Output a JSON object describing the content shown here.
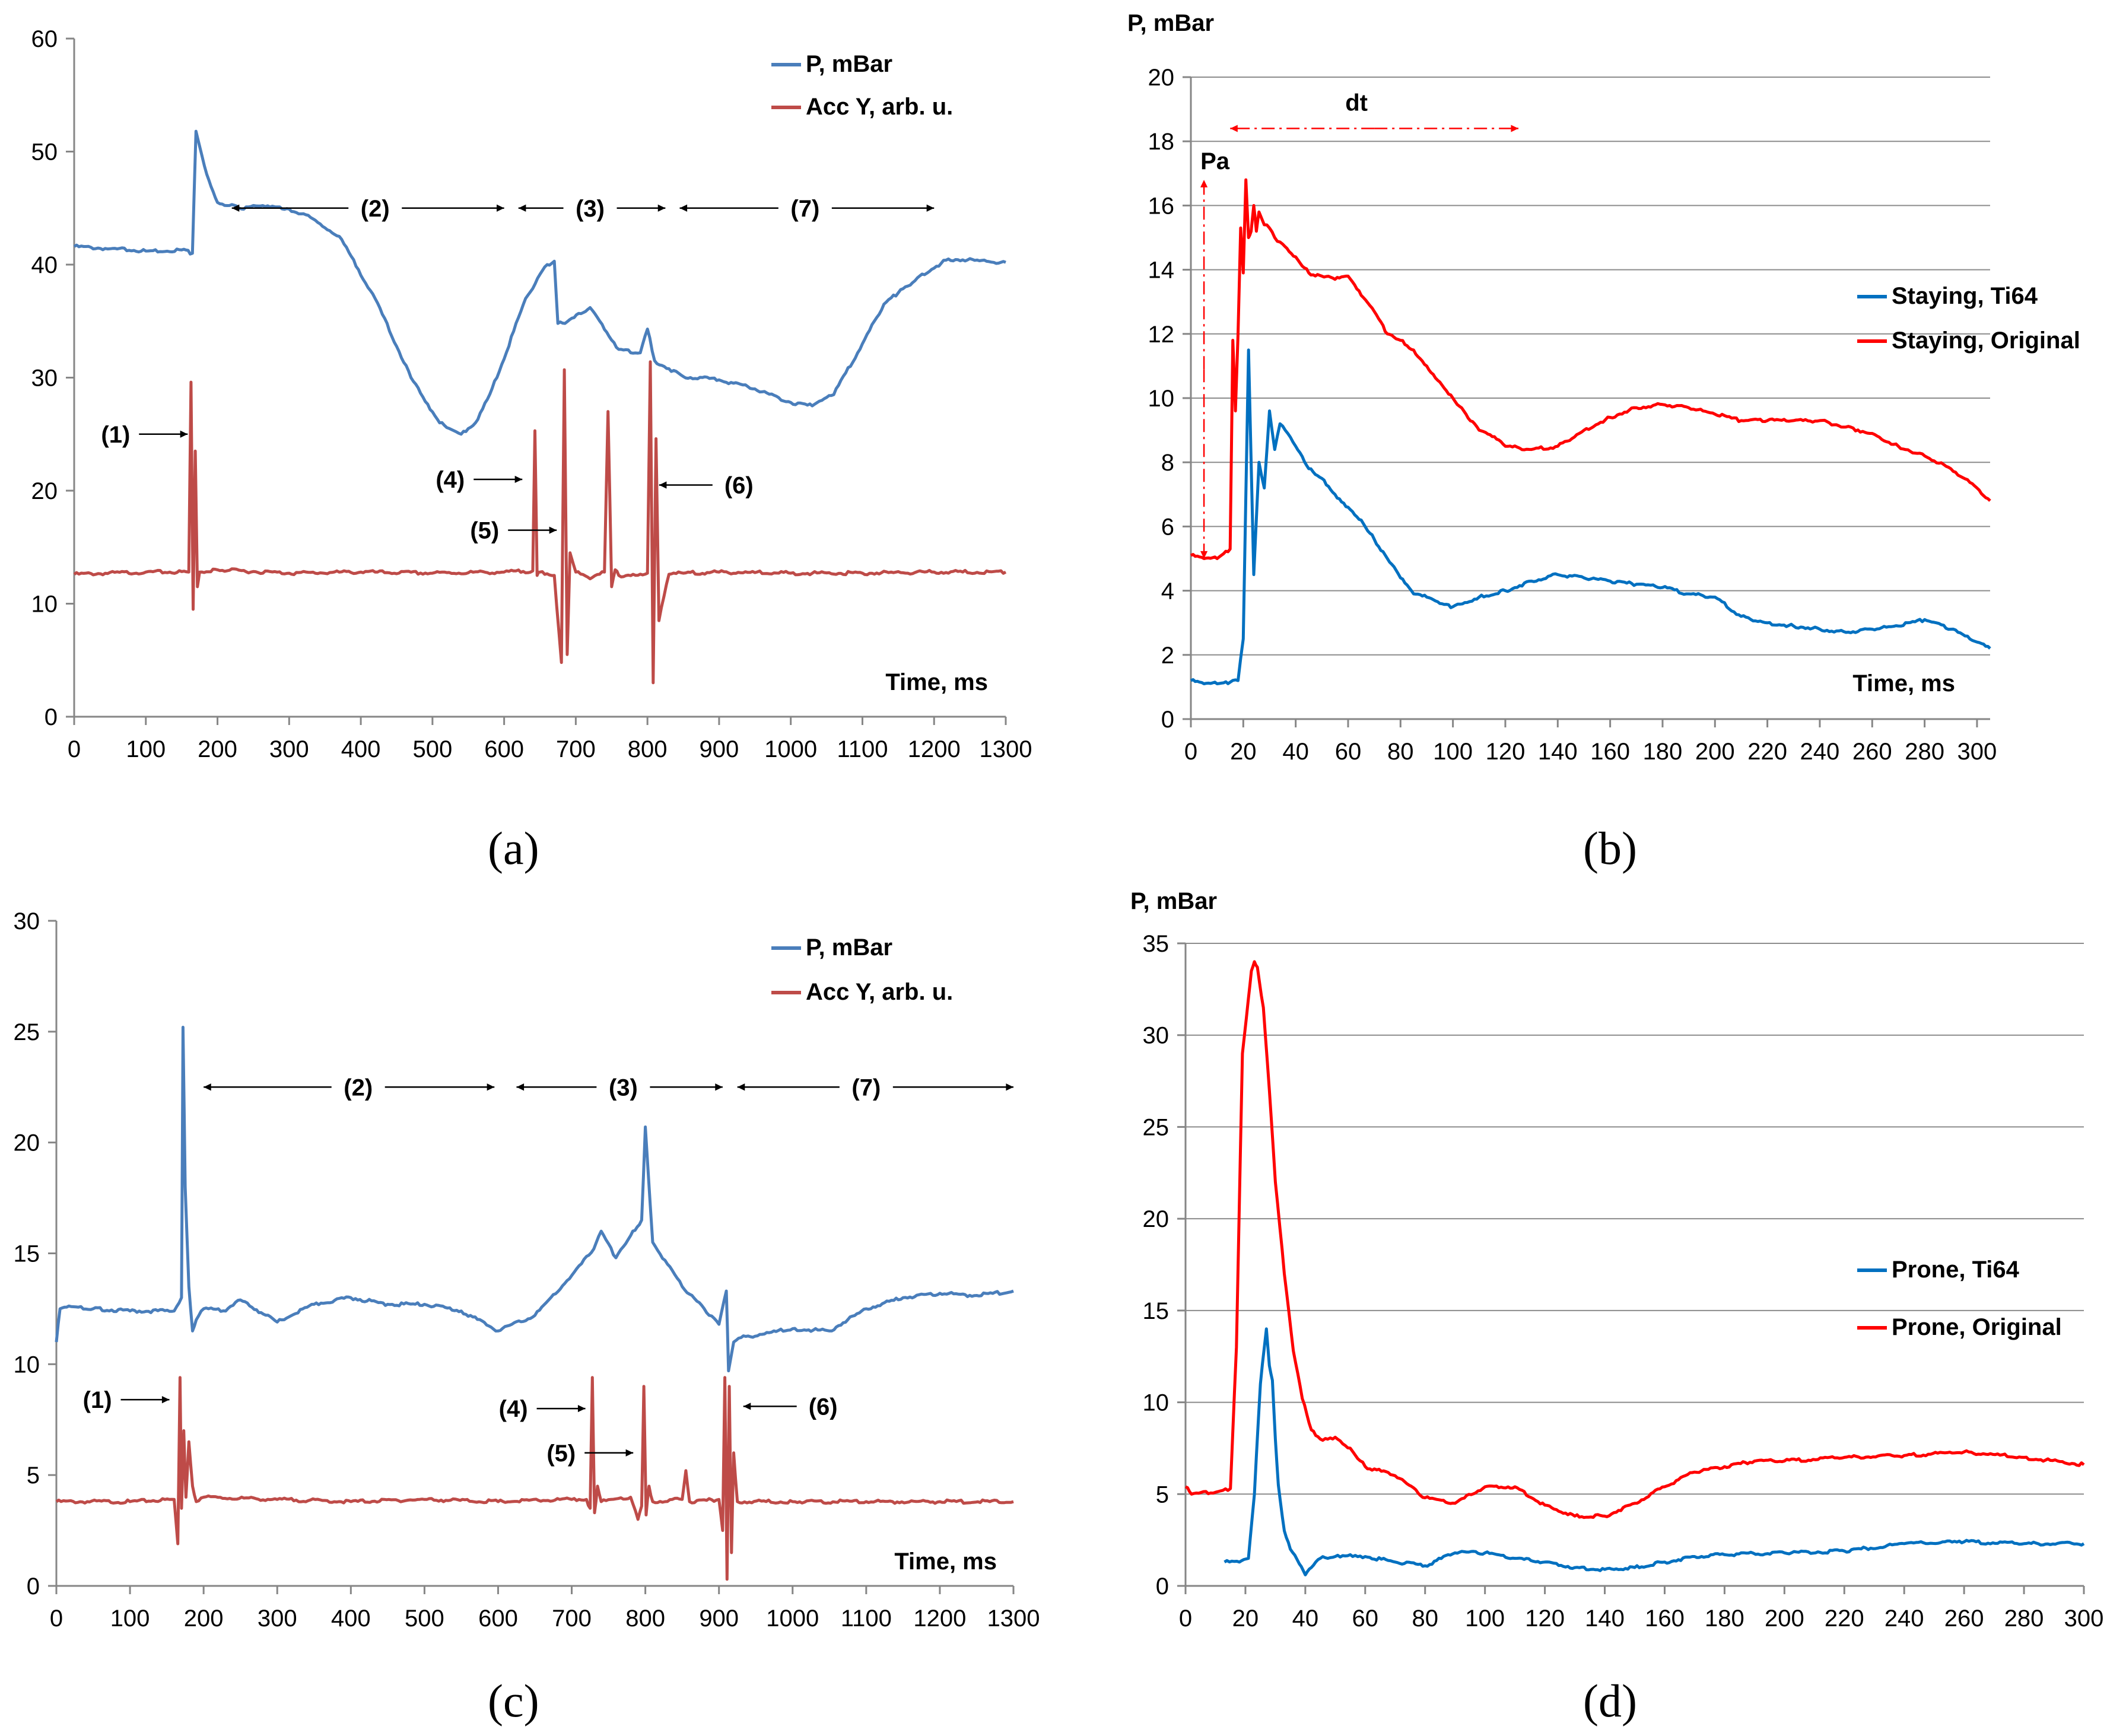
{
  "figure": {
    "panels": [
      {
        "label": "(a)"
      },
      {
        "label": "(b)"
      },
      {
        "label": "(c)"
      },
      {
        "label": "(d)"
      }
    ]
  },
  "chart_data": [
    {
      "type": "line",
      "panel": "(a)",
      "title": "",
      "xlabel": "Time, ms",
      "ylabel": "",
      "xlim": [
        0,
        1300
      ],
      "ylim": [
        0,
        60
      ],
      "x_ticks": [
        0,
        100,
        200,
        300,
        400,
        500,
        600,
        700,
        800,
        900,
        1000,
        1100,
        1200,
        1300
      ],
      "y_ticks": [
        0,
        10,
        20,
        30,
        40,
        50,
        60
      ],
      "grid": false,
      "legend": "top-right",
      "series": [
        {
          "name": "P, mBar",
          "color": "#4a7ebb",
          "x": [
            0,
            50,
            100,
            150,
            165,
            170,
            175,
            185,
            200,
            230,
            270,
            320,
            370,
            420,
            470,
            510,
            540,
            560,
            590,
            630,
            660,
            670,
            675,
            685,
            720,
            760,
            790,
            800,
            810,
            850,
            900,
            950,
            1000,
            1030,
            1060,
            1100,
            1130,
            1150,
            1180,
            1220,
            1300
          ],
          "y": [
            41.6,
            41.4,
            41.2,
            41.3,
            41.0,
            51.8,
            50.5,
            48,
            45.5,
            45,
            45.2,
            44.5,
            42.5,
            37,
            30,
            26,
            25,
            26,
            30,
            37,
            40,
            40.3,
            34.8,
            34.8,
            36.2,
            32.5,
            32.2,
            34.3,
            31.5,
            30.1,
            29.8,
            29,
            27.8,
            27.5,
            28.5,
            33,
            36.5,
            37.5,
            39,
            40.5,
            40.2
          ]
        },
        {
          "name": "Acc Y, arb. u.",
          "color": "#be4b48",
          "x": [
            0,
            100,
            160,
            163,
            166,
            169,
            172,
            175,
            200,
            300,
            400,
            500,
            600,
            640,
            643,
            646,
            650,
            670,
            680,
            684,
            688,
            692,
            700,
            720,
            740,
            745,
            750,
            755,
            760,
            780,
            800,
            804,
            808,
            812,
            816,
            830,
            850,
            900,
            1000,
            1100,
            1200,
            1300
          ],
          "y": [
            12.6,
            12.8,
            12.8,
            29.6,
            9.5,
            23.5,
            11.5,
            12.8,
            13.0,
            12.7,
            12.8,
            12.7,
            12.8,
            12.9,
            25.3,
            12.5,
            12.8,
            12.5,
            4.8,
            30.7,
            5.5,
            14.5,
            12.8,
            12.2,
            12.8,
            27.0,
            11.5,
            13.0,
            12.5,
            12.6,
            12.7,
            31.4,
            3.0,
            24.6,
            8.5,
            12.6,
            12.7,
            12.8,
            12.7,
            12.7,
            12.8,
            12.8
          ]
        }
      ],
      "annotations": [
        {
          "text": "(1)",
          "x": 165,
          "y": 25,
          "kind": "label-left"
        },
        {
          "text": "(2)",
          "x": 420,
          "y": 45,
          "kind": "span",
          "x_start": 220,
          "x_end": 600
        },
        {
          "text": "(3)",
          "x": 720,
          "y": 45,
          "kind": "span",
          "x_start": 620,
          "x_end": 825
        },
        {
          "text": "(7)",
          "x": 1020,
          "y": 45,
          "kind": "span",
          "x_start": 845,
          "x_end": 1200
        },
        {
          "text": "(4)",
          "x": 632,
          "y": 21,
          "kind": "label-left"
        },
        {
          "text": "(5)",
          "x": 680,
          "y": 16.5,
          "kind": "label-left"
        },
        {
          "text": "(6)",
          "x": 808,
          "y": 20.5,
          "kind": "label-right"
        }
      ]
    },
    {
      "type": "line",
      "panel": "(b)",
      "title": "",
      "xlabel": "Time, ms",
      "ylabel": "P, mBar",
      "xlim": [
        0,
        305
      ],
      "ylim": [
        0,
        20
      ],
      "x_ticks": [
        0,
        20,
        40,
        60,
        80,
        100,
        120,
        140,
        160,
        180,
        200,
        220,
        240,
        260,
        280,
        300
      ],
      "y_ticks": [
        0,
        2,
        4,
        6,
        8,
        10,
        12,
        14,
        16,
        18,
        20
      ],
      "grid": true,
      "legend": "right",
      "series": [
        {
          "name": "Staying, Ti64",
          "color": "#0070c0",
          "x": [
            0,
            5,
            10,
            15,
            18,
            20,
            22,
            24,
            26,
            28,
            30,
            32,
            34,
            36,
            40,
            45,
            50,
            55,
            60,
            65,
            70,
            75,
            80,
            85,
            90,
            95,
            100,
            110,
            120,
            130,
            140,
            150,
            160,
            170,
            180,
            190,
            200,
            210,
            220,
            230,
            240,
            250,
            260,
            270,
            280,
            290,
            300,
            305
          ],
          "y": [
            1.2,
            1.1,
            1.1,
            1.15,
            1.2,
            2.5,
            11.5,
            4.5,
            8,
            7.2,
            9.6,
            8.4,
            9.2,
            9,
            8.5,
            7.8,
            7.5,
            7,
            6.6,
            6.2,
            5.6,
            5.0,
            4.4,
            3.9,
            3.8,
            3.6,
            3.5,
            3.8,
            4.0,
            4.3,
            4.5,
            4.4,
            4.3,
            4.2,
            4.1,
            3.9,
            3.8,
            3.2,
            3.0,
            2.9,
            2.8,
            2.7,
            2.8,
            2.9,
            3.1,
            2.8,
            2.4,
            2.2
          ]
        },
        {
          "name": "Staying, Original",
          "color": "#ff0000",
          "x": [
            0,
            5,
            10,
            15,
            16,
            17,
            18,
            19,
            20,
            21,
            22,
            23,
            24,
            25,
            26,
            28,
            30,
            32,
            35,
            40,
            45,
            50,
            55,
            60,
            65,
            70,
            75,
            80,
            85,
            90,
            95,
            100,
            105,
            110,
            115,
            120,
            130,
            140,
            150,
            160,
            170,
            180,
            190,
            200,
            210,
            220,
            230,
            240,
            250,
            260,
            270,
            280,
            290,
            300,
            305
          ],
          "y": [
            5.1,
            5.0,
            5.0,
            5.3,
            11.8,
            9.6,
            12.0,
            15.3,
            13.9,
            16.8,
            15.0,
            15.2,
            16.0,
            15.2,
            15.8,
            15.4,
            15.3,
            15.0,
            14.8,
            14.4,
            13.9,
            13.8,
            13.7,
            13.8,
            13.2,
            12.7,
            12.0,
            11.8,
            11.5,
            11.0,
            10.5,
            10.0,
            9.5,
            9.0,
            8.8,
            8.5,
            8.4,
            8.5,
            9.0,
            9.4,
            9.7,
            9.8,
            9.7,
            9.5,
            9.3,
            9.3,
            9.3,
            9.3,
            9.1,
            8.9,
            8.5,
            8.2,
            7.8,
            7.2,
            6.8
          ]
        }
      ],
      "annotations": [
        {
          "text": "dt",
          "kind": "double-arrow-horizontal",
          "x_start": 15,
          "x_end": 125,
          "y": 18.4
        },
        {
          "text": "Pa",
          "kind": "double-arrow-vertical",
          "x": 5,
          "y_start": 5,
          "y_end": 16.8
        }
      ]
    },
    {
      "type": "line",
      "panel": "(c)",
      "title": "",
      "xlabel": "Time, ms",
      "ylabel": "",
      "xlim": [
        0,
        1300
      ],
      "ylim": [
        0,
        30
      ],
      "x_ticks": [
        0,
        100,
        200,
        300,
        400,
        500,
        600,
        700,
        800,
        900,
        1000,
        1100,
        1200,
        1300
      ],
      "y_ticks": [
        0,
        5,
        10,
        15,
        20,
        25,
        30
      ],
      "grid": false,
      "legend": "top-right",
      "series": [
        {
          "name": "P, mBar",
          "color": "#4a7ebb",
          "x": [
            0,
            5,
            20,
            50,
            100,
            160,
            170,
            172,
            175,
            180,
            185,
            190,
            200,
            230,
            250,
            300,
            350,
            400,
            450,
            500,
            550,
            600,
            650,
            700,
            730,
            740,
            760,
            780,
            795,
            800,
            810,
            850,
            880,
            900,
            910,
            913,
            920,
            930,
            1000,
            1050,
            1100,
            1150,
            1200,
            1250,
            1300
          ],
          "y": [
            11.0,
            12.5,
            12.6,
            12.5,
            12.4,
            12.4,
            13.0,
            25.2,
            18.0,
            13.5,
            11.5,
            12.0,
            12.5,
            12.4,
            12.9,
            11.9,
            12.7,
            13.0,
            12.7,
            12.7,
            12.4,
            11.5,
            12.2,
            14.0,
            15.2,
            16.0,
            14.8,
            15.8,
            16.5,
            20.7,
            15.5,
            13.5,
            12.5,
            11.8,
            13.3,
            9.7,
            11.0,
            11.2,
            11.6,
            11.5,
            12.5,
            13.0,
            13.2,
            13.1,
            13.3
          ]
        },
        {
          "name": "Acc Y, arb. u.",
          "color": "#be4b48",
          "x": [
            0,
            100,
            160,
            165,
            168,
            170,
            173,
            176,
            180,
            185,
            190,
            200,
            300,
            400,
            500,
            600,
            700,
            720,
            725,
            728,
            731,
            735,
            740,
            780,
            790,
            795,
            798,
            801,
            805,
            810,
            850,
            855,
            860,
            900,
            905,
            908,
            911,
            914,
            917,
            920,
            925,
            1000,
            1100,
            1200,
            1300
          ],
          "y": [
            3.8,
            3.8,
            3.9,
            1.9,
            9.4,
            3.5,
            7.0,
            4.0,
            6.5,
            4.5,
            3.8,
            4.0,
            3.9,
            3.8,
            3.9,
            3.8,
            3.9,
            3.9,
            3.5,
            9.4,
            3.3,
            4.5,
            3.8,
            4.0,
            3.0,
            3.6,
            9.0,
            3.2,
            4.5,
            3.8,
            3.9,
            5.2,
            3.8,
            3.9,
            2.5,
            9.4,
            0.3,
            9.0,
            1.5,
            6.0,
            3.8,
            3.8,
            3.8,
            3.8,
            3.8
          ]
        }
      ],
      "annotations": [
        {
          "text": "(1)",
          "x": 160,
          "y": 8.4,
          "kind": "label-left"
        },
        {
          "text": "(2)",
          "x": 410,
          "y": 22.5,
          "kind": "span",
          "x_start": 200,
          "x_end": 595
        },
        {
          "text": "(3)",
          "x": 770,
          "y": 22.5,
          "kind": "span",
          "x_start": 625,
          "x_end": 905
        },
        {
          "text": "(7)",
          "x": 1100,
          "y": 22.5,
          "kind": "span",
          "x_start": 925,
          "x_end": 1300
        },
        {
          "text": "(4)",
          "x": 725,
          "y": 8.0,
          "kind": "label-left"
        },
        {
          "text": "(5)",
          "x": 790,
          "y": 6.0,
          "kind": "label-left"
        },
        {
          "text": "(6)",
          "x": 925,
          "y": 8.1,
          "kind": "label-right"
        }
      ]
    },
    {
      "type": "line",
      "panel": "(d)",
      "title": "",
      "xlabel": "",
      "ylabel": "P, mBar",
      "xlim": [
        0,
        300
      ],
      "ylim": [
        0,
        35
      ],
      "x_ticks": [
        0,
        20,
        40,
        60,
        80,
        100,
        120,
        140,
        160,
        180,
        200,
        220,
        240,
        260,
        280,
        300
      ],
      "y_ticks": [
        0,
        5,
        10,
        15,
        20,
        25,
        30,
        35
      ],
      "grid": true,
      "legend": "right",
      "series": [
        {
          "name": "Prone, Ti64",
          "color": "#0070c0",
          "x": [
            13,
            18,
            21,
            23,
            25,
            27,
            28,
            29,
            30,
            31,
            33,
            35,
            38,
            40,
            42,
            45,
            50,
            55,
            60,
            70,
            80,
            90,
            100,
            110,
            120,
            130,
            140,
            150,
            160,
            170,
            180,
            200,
            220,
            240,
            260,
            280,
            300
          ],
          "y": [
            1.3,
            1.3,
            1.5,
            5,
            11,
            14,
            12,
            11.2,
            8,
            5.5,
            3,
            2,
            1.2,
            0.6,
            1.0,
            1.5,
            1.6,
            1.7,
            1.6,
            1.3,
            1.1,
            1.8,
            1.8,
            1.5,
            1.3,
            1.0,
            0.9,
            1.0,
            1.3,
            1.6,
            1.7,
            1.8,
            1.9,
            2.3,
            2.4,
            2.3,
            2.3
          ]
        },
        {
          "name": "Prone, Original",
          "color": "#ff0000",
          "x": [
            0,
            2,
            10,
            15,
            17,
            19,
            21,
            22,
            23,
            24,
            26,
            28,
            30,
            33,
            36,
            39,
            42,
            45,
            50,
            55,
            60,
            70,
            80,
            90,
            100,
            110,
            120,
            130,
            140,
            150,
            160,
            170,
            180,
            190,
            200,
            220,
            240,
            260,
            280,
            300
          ],
          "y": [
            5.4,
            5.0,
            5.1,
            5.3,
            13,
            29,
            32,
            33.5,
            34,
            33.7,
            31.5,
            27,
            22,
            17,
            12.8,
            10.2,
            8.5,
            8.0,
            8.1,
            7.5,
            6.5,
            6.0,
            4.8,
            4.5,
            5.4,
            5.4,
            4.4,
            3.8,
            3.8,
            4.5,
            5.4,
            6.2,
            6.5,
            6.8,
            6.8,
            7.0,
            7.1,
            7.3,
            7.0,
            6.6
          ]
        }
      ],
      "annotations": []
    }
  ]
}
